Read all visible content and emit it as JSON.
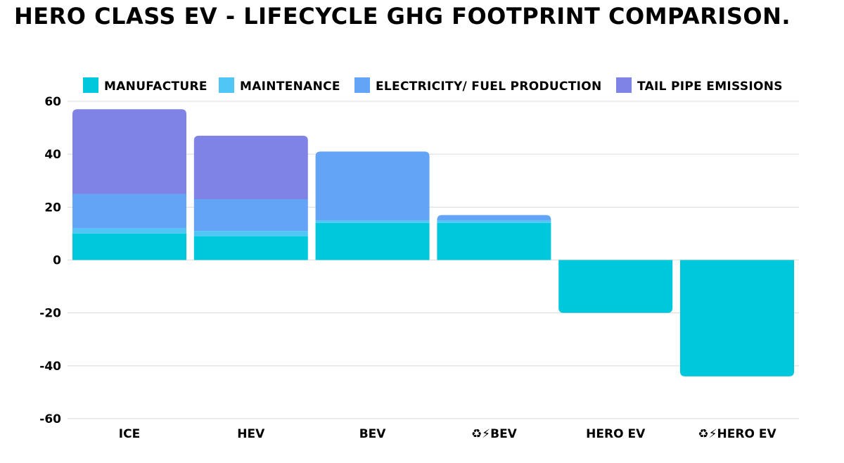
{
  "chart_data": {
    "type": "bar",
    "stacked": true,
    "title": "HERO CLASS EV - LIFECYCLE GHG FOOTPRINT COMPARISON.",
    "xlabel": "",
    "ylabel": "",
    "ylim": [
      -60,
      60
    ],
    "yticks": [
      60,
      40,
      20,
      0,
      -20,
      -40,
      -60
    ],
    "grid": true,
    "legend_position": "top",
    "categories": [
      "ICE",
      "HEV",
      "BEV",
      "♻⚡BEV",
      "HERO EV",
      "♻⚡HERO EV"
    ],
    "series": [
      {
        "name": "MANUFACTURE",
        "color": "#00C8DC",
        "values": [
          10,
          9,
          14,
          14,
          -20,
          -44
        ]
      },
      {
        "name": "MAINTENANCE",
        "color": "#4FC6F5",
        "values": [
          2,
          2,
          1,
          1,
          0,
          0
        ]
      },
      {
        "name": "ELECTRICITY/ FUEL PRODUCTION",
        "color": "#63A4F7",
        "values": [
          13,
          12,
          26,
          2,
          0,
          0
        ]
      },
      {
        "name": "TAIL PIPE EMISSIONS",
        "color": "#7F83E6",
        "values": [
          32,
          24,
          0,
          0,
          0,
          0
        ]
      }
    ]
  }
}
